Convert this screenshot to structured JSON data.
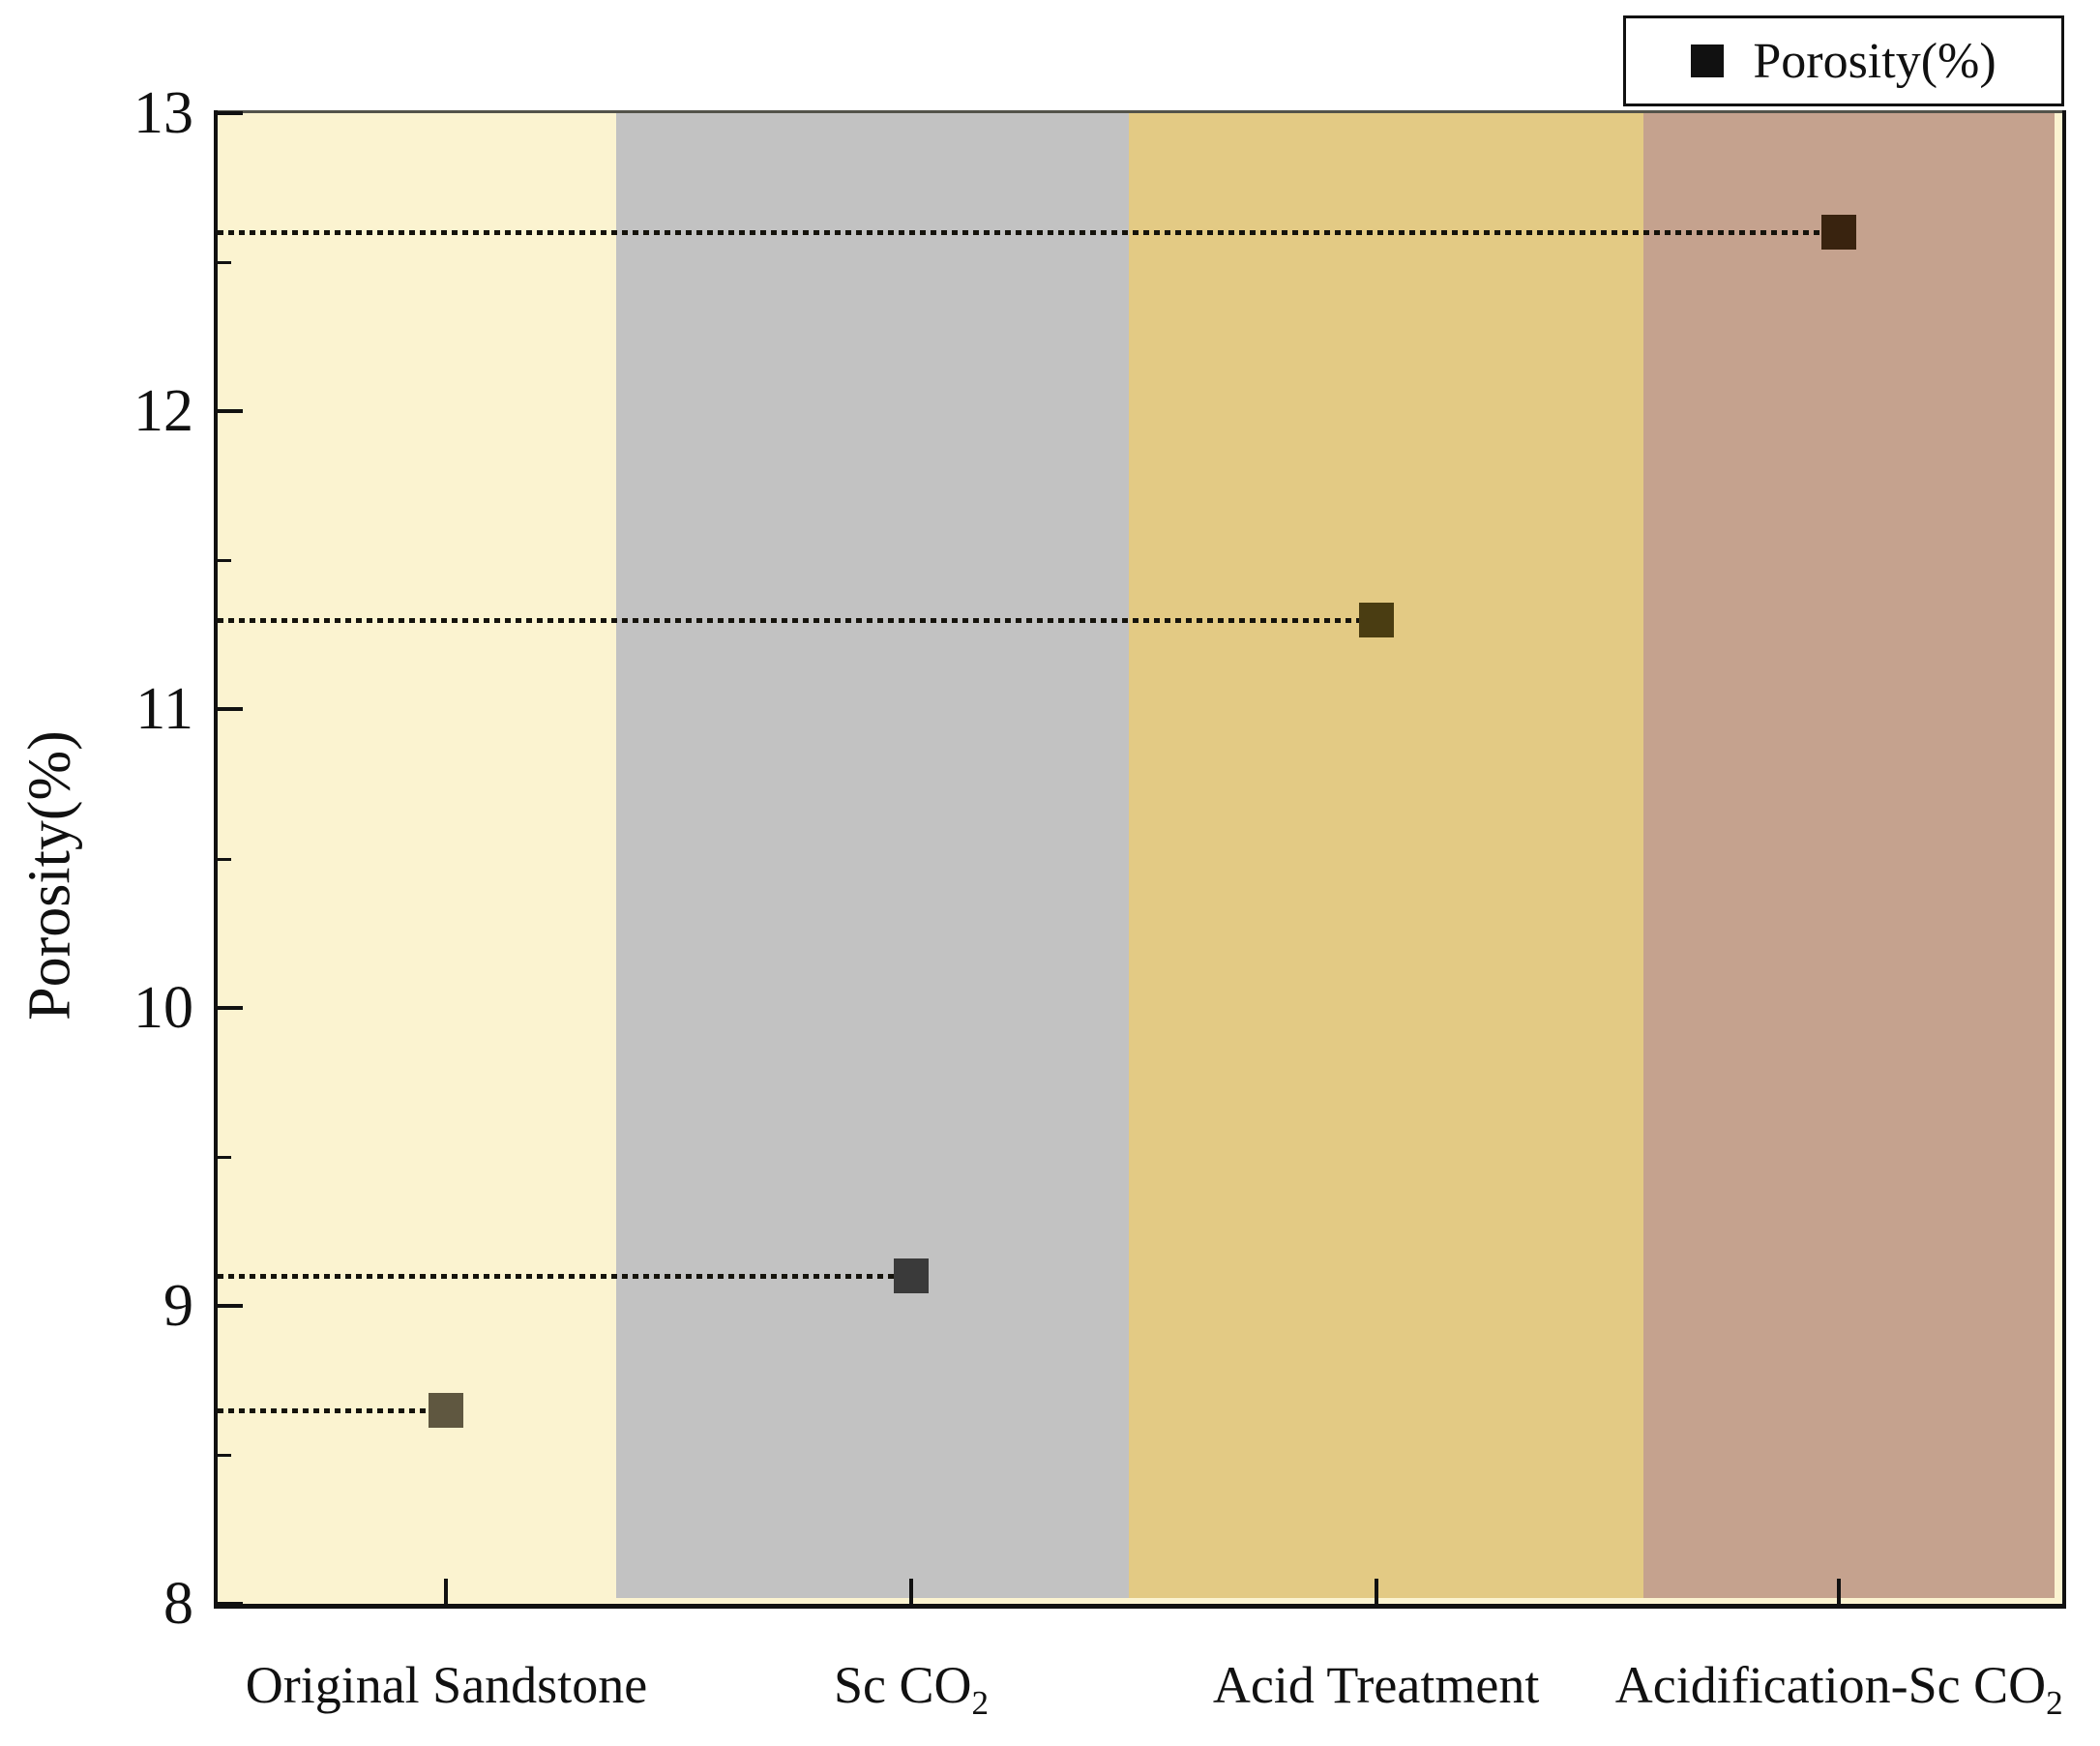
{
  "chart_data": {
    "type": "scatter",
    "title": "",
    "xlabel": "",
    "ylabel": "Porosity(%)",
    "ylim": [
      8,
      13
    ],
    "y_major_ticks": [
      13,
      12,
      11,
      10,
      9,
      8
    ],
    "y_minor_ticks": [
      12.5,
      11.5,
      10.5,
      9.5,
      8.5
    ],
    "grid": "off",
    "legend": {
      "label": "Porosity(%)",
      "marker": "filled-square",
      "marker_color": "#111111",
      "position": "top-right"
    },
    "categories": [
      {
        "label": "Original Sandstone",
        "subscript": ""
      },
      {
        "label": "Sc CO",
        "subscript": "2"
      },
      {
        "label": "Acid Treatment",
        "subscript": ""
      },
      {
        "label": "Acidification-Sc CO",
        "subscript": "2"
      }
    ],
    "series": [
      {
        "name": "Porosity(%)",
        "values": [
          8.65,
          9.1,
          11.3,
          12.6
        ],
        "marker_colors": [
          "#5f5740",
          "#3a3a3a",
          "#4a3d12",
          "#39230f"
        ]
      }
    ],
    "guide_lines": "dotted horizontal line from y-axis to each data point",
    "background_bands": [
      {
        "color": "#FBF3D0",
        "from_pct": 0.0,
        "to_pct": 21.6
      },
      {
        "color": "#C2C2C2",
        "from_pct": 21.6,
        "to_pct": 49.4
      },
      {
        "color": "#E3CA84",
        "from_pct": 49.4,
        "to_pct": 77.3
      },
      {
        "color": "#C5A28E",
        "from_pct": 77.3,
        "to_pct": 99.6
      }
    ],
    "category_centers_pct": [
      12.4,
      37.6,
      62.8,
      87.9
    ],
    "axis_color": "#111111"
  }
}
